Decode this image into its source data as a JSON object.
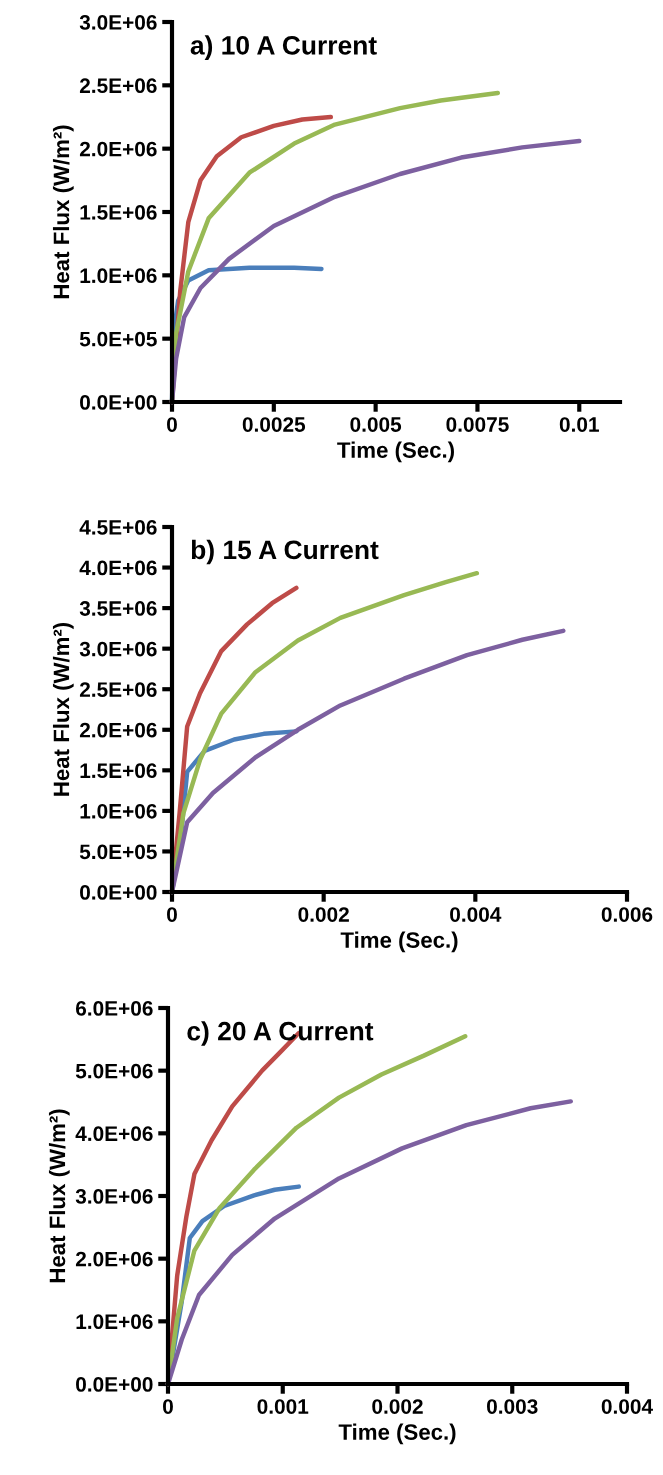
{
  "chart_data": [
    {
      "type": "line",
      "title": "a) 10 A Current",
      "xlabel": "Time (Sec.)",
      "ylabel": "Heat Flux (W/m²)",
      "xlim": [
        0,
        0.011
      ],
      "xticks": [
        0,
        0.0025,
        0.005,
        0.0075,
        0.01
      ],
      "ylim": [
        0,
        3000000
      ],
      "yticks": [
        {
          "value": 0,
          "label": "0.0E+00"
        },
        {
          "value": 500000,
          "label": "5.0E+05"
        },
        {
          "value": 1000000,
          "label": "1.0E+06"
        },
        {
          "value": 1500000,
          "label": "1.5E+06"
        },
        {
          "value": 2000000,
          "label": "2.0E+06"
        },
        {
          "value": 2500000,
          "label": "2.5E+06"
        },
        {
          "value": 3000000,
          "label": "3.0E+06"
        }
      ],
      "grid": false,
      "marker": "none",
      "line_style": "solid",
      "series": [
        {
          "color": "#4a7ebb",
          "x": [
            0,
            4e-05,
            0.00015,
            0.0004,
            0.0009,
            0.0019,
            0.003,
            0.00367
          ],
          "values": [
            0,
            540000,
            800000,
            960000,
            1040000,
            1060000,
            1060000,
            1050000
          ]
        },
        {
          "color": "#be4b48",
          "x": [
            0,
            0.0002,
            0.0004,
            0.0007,
            0.0011,
            0.0017,
            0.0025,
            0.0032,
            0.0039
          ],
          "values": [
            0,
            870000,
            1420000,
            1750000,
            1940000,
            2090000,
            2180000,
            2230000,
            2250000
          ]
        },
        {
          "color": "#98b954",
          "x": [
            0,
            0.0001,
            0.0004,
            0.0009,
            0.0019,
            0.003,
            0.004,
            0.0056,
            0.0066,
            0.008
          ],
          "values": [
            0,
            540000,
            1030000,
            1450000,
            1810000,
            2040000,
            2190000,
            2320000,
            2380000,
            2440000
          ]
        },
        {
          "color": "#7d60a0",
          "x": [
            0,
            0.0001,
            0.0003,
            0.0007,
            0.0014,
            0.0025,
            0.004,
            0.0056,
            0.0071,
            0.0086,
            0.01
          ],
          "values": [
            0,
            340000,
            670000,
            900000,
            1130000,
            1390000,
            1620000,
            1800000,
            1930000,
            2010000,
            2060000
          ]
        }
      ]
    },
    {
      "type": "line",
      "title": "b) 15 A Current",
      "xlabel": "Time (Sec.)",
      "ylabel": "Heat Flux (W/m²)",
      "xlim": [
        0,
        0.006
      ],
      "xticks": [
        0,
        0.002,
        0.004,
        0.006
      ],
      "ylim": [
        0,
        4500000
      ],
      "yticks": [
        {
          "value": 0,
          "label": "0.0E+00"
        },
        {
          "value": 500000,
          "label": "5.0E+05"
        },
        {
          "value": 1000000,
          "label": "1.0E+06"
        },
        {
          "value": 1500000,
          "label": "1.5E+06"
        },
        {
          "value": 2000000,
          "label": "2.0E+06"
        },
        {
          "value": 2500000,
          "label": "2.5E+06"
        },
        {
          "value": 3000000,
          "label": "3.0E+06"
        },
        {
          "value": 3500000,
          "label": "3.5E+06"
        },
        {
          "value": 4000000,
          "label": "4.0E+06"
        },
        {
          "value": 4500000,
          "label": "4.5E+06"
        }
      ],
      "grid": false,
      "marker": "none",
      "line_style": "solid",
      "series": [
        {
          "color": "#4a7ebb",
          "x": [
            0,
            0.00012,
            0.0002,
            0.00043,
            0.00082,
            0.00121,
            0.00164
          ],
          "values": [
            0,
            710000,
            1480000,
            1740000,
            1880000,
            1950000,
            1980000
          ]
        },
        {
          "color": "#be4b48",
          "x": [
            0,
            0.0001,
            0.0002,
            0.00037,
            0.00065,
            0.00099,
            0.00132,
            0.00164
          ],
          "values": [
            0,
            970000,
            2040000,
            2450000,
            2970000,
            3300000,
            3560000,
            3750000
          ]
        },
        {
          "color": "#98b954",
          "x": [
            0,
            0.00015,
            0.00037,
            0.00065,
            0.0011,
            0.00166,
            0.00222,
            0.00306,
            0.00361,
            0.00402
          ],
          "values": [
            0,
            970000,
            1630000,
            2200000,
            2710000,
            3100000,
            3380000,
            3660000,
            3820000,
            3930000
          ]
        },
        {
          "color": "#7d60a0",
          "x": [
            0,
            0.0002,
            0.00054,
            0.0011,
            0.00166,
            0.00222,
            0.00306,
            0.00389,
            0.00462,
            0.00516
          ],
          "values": [
            0,
            860000,
            1220000,
            1660000,
            2000000,
            2300000,
            2630000,
            2920000,
            3110000,
            3220000
          ]
        }
      ]
    },
    {
      "type": "line",
      "title": "c) 20 A Current",
      "xlabel": "Time (Sec.)",
      "ylabel": "Heat Flux (W/m²)",
      "xlim": [
        0,
        0.004
      ],
      "xticks": [
        0,
        0.001,
        0.002,
        0.003,
        0.004
      ],
      "ylim": [
        0,
        6000000
      ],
      "yticks": [
        {
          "value": 0,
          "label": "0.0E+00"
        },
        {
          "value": 1000000,
          "label": "1.0E+06"
        },
        {
          "value": 2000000,
          "label": "2.0E+06"
        },
        {
          "value": 3000000,
          "label": "3.0E+06"
        },
        {
          "value": 4000000,
          "label": "4.0E+06"
        },
        {
          "value": 5000000,
          "label": "5.0E+06"
        },
        {
          "value": 6000000,
          "label": "6.0E+06"
        }
      ],
      "grid": false,
      "marker": "none",
      "line_style": "solid",
      "series": [
        {
          "color": "#4a7ebb",
          "x": [
            0,
            0.00012,
            0.00019,
            0.0003,
            0.00049,
            0.00075,
            0.00093,
            0.00114
          ],
          "values": [
            0,
            1320000,
            2330000,
            2600000,
            2840000,
            3010000,
            3100000,
            3150000
          ]
        },
        {
          "color": "#be4b48",
          "x": [
            0,
            8e-05,
            0.00016,
            0.00023,
            0.00038,
            0.00056,
            0.00082,
            0.00097,
            0.00114
          ],
          "values": [
            0,
            1730000,
            2670000,
            3350000,
            3890000,
            4430000,
            5000000,
            5280000,
            5600000
          ]
        },
        {
          "color": "#98b954",
          "x": [
            0,
            8e-05,
            0.00023,
            0.00045,
            0.00075,
            0.00112,
            0.00149,
            0.00186,
            0.00223,
            0.00259
          ],
          "values": [
            0,
            1050000,
            2130000,
            2810000,
            3420000,
            4090000,
            4570000,
            4940000,
            5240000,
            5550000
          ]
        },
        {
          "color": "#7d60a0",
          "x": [
            0,
            0.00012,
            0.00027,
            0.00056,
            0.00093,
            0.00149,
            0.00204,
            0.0026,
            0.00316,
            0.00351
          ],
          "values": [
            0,
            710000,
            1420000,
            2060000,
            2640000,
            3280000,
            3760000,
            4130000,
            4400000,
            4510000
          ]
        }
      ]
    }
  ]
}
